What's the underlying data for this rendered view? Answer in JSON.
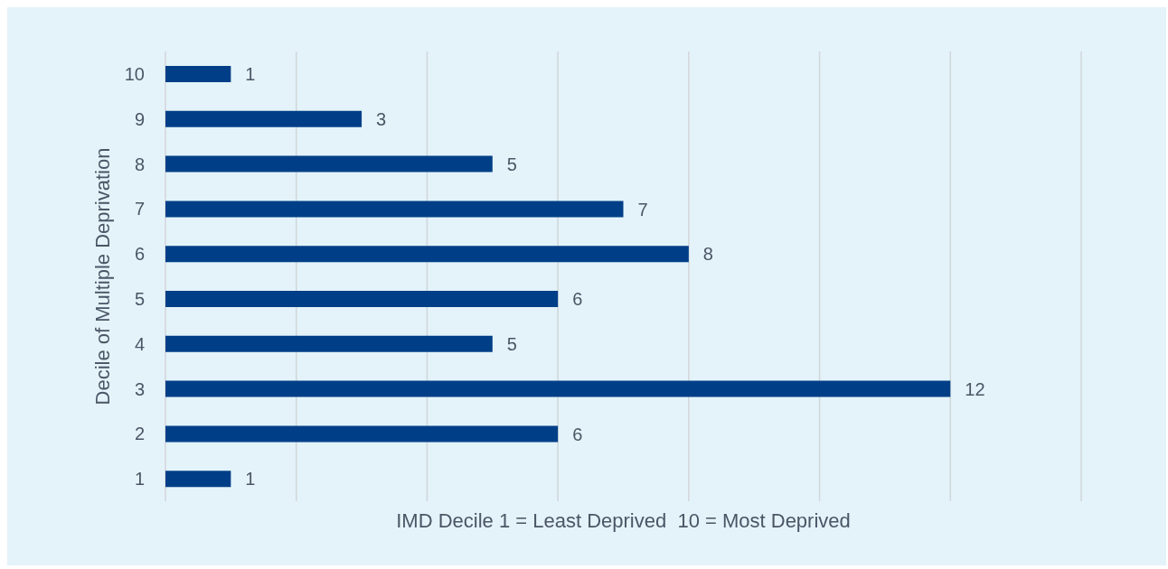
{
  "chart_data": {
    "type": "bar",
    "orientation": "horizontal",
    "xlabel": "IMD Decile 1 = Least Deprived  10 = Most Deprived",
    "ylabel": "Decile of Multiple Deprivation",
    "categories": [
      "10",
      "9",
      "8",
      "7",
      "6",
      "5",
      "4",
      "3",
      "2",
      "1"
    ],
    "values": [
      1,
      3,
      5,
      7,
      8,
      6,
      5,
      12,
      6,
      1
    ],
    "color": "#003f87",
    "xlim": [
      0,
      14
    ],
    "xticks": [
      {
        "value": 0,
        "label": null
      },
      {
        "value": 2,
        "label": null
      },
      {
        "value": 4,
        "label": null
      },
      {
        "value": 6,
        "label": null
      },
      {
        "value": 8,
        "label": null
      },
      {
        "value": 10,
        "label": null
      },
      {
        "value": 12,
        "label": null
      },
      {
        "value": 14,
        "label": null
      }
    ],
    "grid": "x",
    "data_labels": true,
    "tick_labels": "y"
  }
}
